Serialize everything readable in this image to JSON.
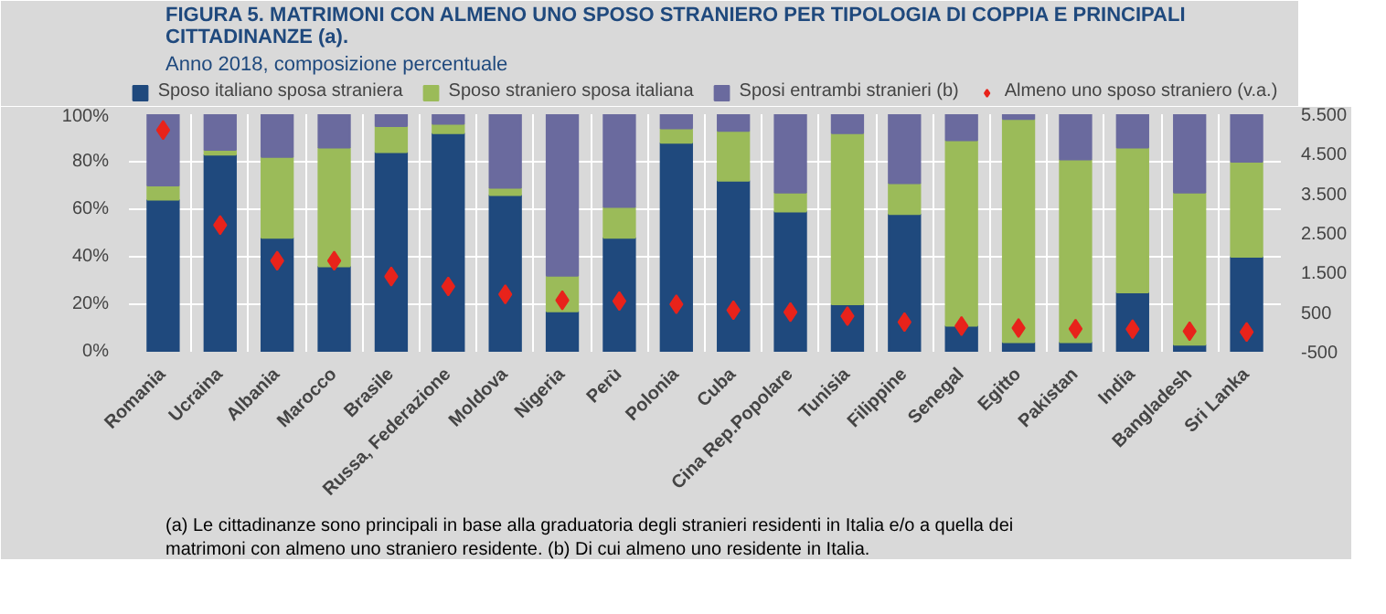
{
  "chart_data": {
    "type": "bar",
    "stacked": true,
    "title": "FIGURA 5. MATRIMONI CON ALMENO UNO SPOSO STRANIERO PER TIPOLOGIA DI COPPIA E PRINCIPALI CITTADINANZE (a).",
    "subtitle": "Anno 2018, composizione percentuale",
    "categories": [
      "Romania",
      "Ucraina",
      "Albania",
      "Marocco",
      "Brasile",
      "Russa, Federazione",
      "Moldova",
      "Nigeria",
      "Perù",
      "Polonia",
      "Cuba",
      "Cina Rep.Popolare",
      "Tunisia",
      "Filippine",
      "Senegal",
      "Egitto",
      "Pakistan",
      "India",
      "Bangladesh",
      "Sri Lanka"
    ],
    "series": [
      {
        "name": "Sposo italiano sposa straniera",
        "color": "#1f497d",
        "values": [
          64,
          83,
          48,
          36,
          84,
          92,
          66,
          17,
          48,
          88,
          72,
          59,
          20,
          58,
          11,
          4,
          4,
          25,
          3,
          40
        ]
      },
      {
        "name": "Sposo straniero sposa italiana",
        "color": "#9bbb59",
        "values": [
          6,
          2,
          34,
          50,
          11,
          4,
          3,
          15,
          13,
          6,
          21,
          8,
          72,
          13,
          78,
          94,
          77,
          61,
          64,
          40
        ]
      },
      {
        "name": "Sposi entrambi stranieri (b)",
        "color": "#6a6a9e",
        "values": [
          30,
          15,
          18,
          14,
          5,
          4,
          31,
          68,
          39,
          6,
          7,
          33,
          8,
          29,
          11,
          2,
          19,
          14,
          33,
          20
        ]
      },
      {
        "name": "Almeno uno sposo straniero (v.a.)",
        "type": "scatter",
        "axis": "y2",
        "marker": "diamond",
        "color": "#e8231b",
        "values": [
          5100,
          2700,
          1800,
          1800,
          1400,
          1150,
          950,
          800,
          780,
          700,
          550,
          500,
          400,
          250,
          150,
          100,
          80,
          70,
          20,
          0
        ]
      }
    ],
    "ylim": [
      0,
      100
    ],
    "yticks": [
      {
        "value": 0,
        "label": "0%"
      },
      {
        "value": 20,
        "label": "20%"
      },
      {
        "value": 40,
        "label": "40%"
      },
      {
        "value": 60,
        "label": "60%"
      },
      {
        "value": 80,
        "label": "80%"
      },
      {
        "value": 100,
        "label": "100%"
      }
    ],
    "y2lim": [
      -500,
      5500
    ],
    "y2ticks": [
      {
        "value": -500,
        "label": "-500"
      },
      {
        "value": 500,
        "label": "500"
      },
      {
        "value": 1500,
        "label": "1.500"
      },
      {
        "value": 2500,
        "label": "2.500"
      },
      {
        "value": 3500,
        "label": "3.500"
      },
      {
        "value": 4500,
        "label": "4.500"
      },
      {
        "value": 5500,
        "label": "5.500"
      }
    ],
    "grid": true,
    "legend": "top",
    "annotations": [
      "(a) Le cittadinanze sono principali in base alla graduatoria degli stranieri residenti in Italia e/o a quella dei matrimoni con almeno uno straniero residente. (b) Di cui almeno uno residente in Italia."
    ]
  }
}
